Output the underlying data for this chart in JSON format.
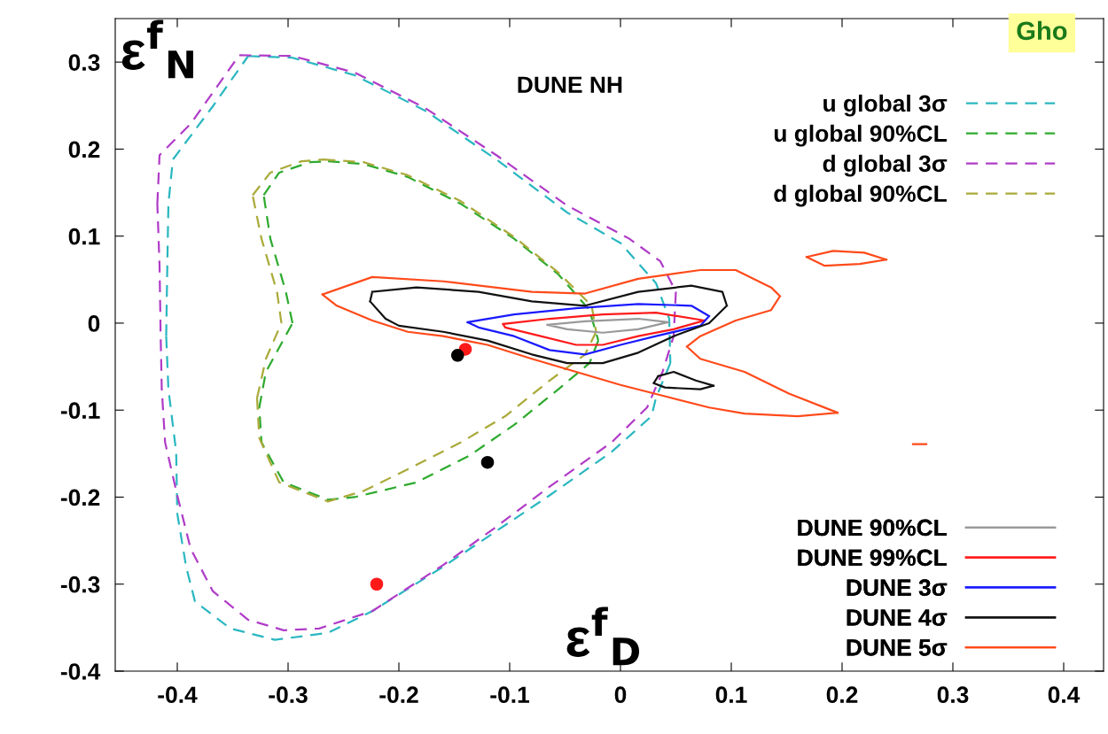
{
  "chart_data": {
    "type": "line",
    "title": "DUNE NH",
    "xlabel": "ε$^{f}$$_{D}$",
    "ylabel": "ε$^{f}$$_{N}$",
    "annotations": [
      "Gho"
    ],
    "xlim": [
      -0.456,
      0.436
    ],
    "ylim": [
      -0.4,
      0.35
    ],
    "xticks": [
      -0.4,
      -0.3,
      -0.2,
      -0.1,
      0,
      0.1,
      0.2,
      0.3,
      0.4
    ],
    "yticks": [
      -0.4,
      -0.3,
      -0.2,
      -0.1,
      0,
      0.1,
      0.2,
      0.3
    ],
    "legend": "right",
    "grid": false,
    "series": [
      {
        "name": "u global 3σ",
        "color": "#2ab7c0",
        "line_style": "dashed",
        "x": [
          -0.336,
          -0.296,
          -0.24,
          -0.176,
          -0.112,
          -0.048,
          0,
          0.032,
          0.044,
          0.045,
          null,
          0.045,
          0.032,
          0.028,
          -0.008,
          -0.064,
          -0.112,
          -0.16,
          -0.224,
          -0.264,
          -0.312,
          -0.352,
          -0.384,
          -0.392,
          -0.4,
          -0.401,
          -0.408,
          -0.41,
          null,
          -0.41,
          -0.409,
          -0.408,
          -0.404,
          -0.368,
          -0.336
        ],
        "values": [
          0.307,
          0.305,
          0.285,
          0.244,
          0.188,
          0.127,
          0.092,
          0.046,
          0.005,
          -0.046,
          null,
          -0.046,
          -0.086,
          -0.107,
          -0.148,
          -0.198,
          -0.239,
          -0.28,
          -0.331,
          -0.356,
          -0.364,
          -0.351,
          -0.32,
          -0.28,
          -0.219,
          -0.148,
          -0.076,
          -0.015,
          null,
          -0.015,
          0.066,
          0.137,
          0.188,
          0.249,
          0.307
        ]
      },
      {
        "name": "u global 90%CL",
        "color": "#2eaa2e",
        "line_style": "dashed",
        "x": [
          -0.264,
          -0.232,
          -0.192,
          -0.144,
          -0.096,
          -0.056,
          -0.028,
          -0.02,
          null,
          -0.02,
          -0.028,
          -0.056,
          -0.096,
          -0.136,
          -0.184,
          -0.24,
          -0.264,
          -0.304,
          -0.324,
          -0.326,
          null,
          -0.326,
          -0.32,
          -0.296,
          null,
          -0.296,
          -0.302,
          -0.316,
          -0.322,
          null,
          -0.322,
          -0.308,
          -0.28,
          -0.264
        ],
        "values": [
          0.186,
          0.183,
          0.168,
          0.137,
          0.097,
          0.056,
          0.015,
          -0.02,
          null,
          -0.02,
          -0.046,
          -0.076,
          -0.117,
          -0.152,
          -0.183,
          -0.2,
          -0.203,
          -0.183,
          -0.137,
          -0.097,
          null,
          -0.097,
          -0.056,
          0,
          null,
          0,
          0.036,
          0.097,
          0.147,
          null,
          0.147,
          0.173,
          0.185,
          0.186
        ]
      },
      {
        "name": "d global 3σ",
        "color": "#b03cc8",
        "line_style": "dashed",
        "x": [
          -0.344,
          -0.296,
          -0.24,
          -0.176,
          -0.112,
          -0.048,
          0.008,
          0.036,
          0.05,
          null,
          0.05,
          0.048,
          0.038,
          0.024,
          -0.008,
          -0.064,
          -0.112,
          -0.16,
          -0.224,
          -0.272,
          -0.304,
          -0.336,
          -0.368,
          -0.388,
          -0.4,
          -0.411,
          -0.414,
          -0.415,
          -0.416,
          -0.418,
          null,
          -0.418,
          -0.416,
          -0.388,
          -0.344
        ],
        "values": [
          0.308,
          0.307,
          0.288,
          0.247,
          0.193,
          0.135,
          0.097,
          0.071,
          0.036,
          null,
          0.036,
          -0.015,
          -0.056,
          -0.097,
          -0.137,
          -0.188,
          -0.234,
          -0.278,
          -0.331,
          -0.351,
          -0.353,
          -0.341,
          -0.308,
          -0.259,
          -0.198,
          -0.137,
          -0.076,
          -0.015,
          0.066,
          0.137,
          null,
          0.137,
          0.193,
          0.229,
          0.308
        ]
      },
      {
        "name": "d global 90%CL",
        "color": "#aaaa3a",
        "line_style": "dashed",
        "x": [
          -0.268,
          -0.232,
          -0.192,
          -0.144,
          -0.096,
          -0.056,
          -0.026,
          -0.022,
          null,
          -0.022,
          -0.032,
          -0.064,
          -0.104,
          -0.144,
          -0.192,
          -0.232,
          -0.264,
          -0.308,
          -0.326,
          -0.328,
          null,
          -0.328,
          -0.32,
          -0.306,
          null,
          -0.306,
          -0.31,
          -0.324,
          -0.332,
          null,
          -0.332,
          -0.316,
          -0.288,
          -0.268
        ],
        "values": [
          0.188,
          0.185,
          0.17,
          0.14,
          0.099,
          0.058,
          0.02,
          -0.01,
          null,
          -0.01,
          -0.036,
          -0.066,
          -0.107,
          -0.137,
          -0.168,
          -0.193,
          -0.205,
          -0.183,
          -0.132,
          -0.086,
          null,
          -0.086,
          -0.041,
          0,
          null,
          0,
          0.036,
          0.097,
          0.147,
          null,
          0.147,
          0.173,
          0.186,
          0.188
        ]
      },
      {
        "name": "DUNE 90%CL",
        "color": "#999999",
        "line_style": "solid",
        "x": [
          -0.066,
          -0.032,
          0.016,
          0.043,
          null,
          0.043,
          0.016,
          -0.016,
          -0.048,
          -0.066
        ],
        "values": [
          -0.002,
          0.002,
          0.005,
          0.001,
          null,
          0.001,
          -0.007,
          -0.011,
          -0.007,
          -0.002
        ]
      },
      {
        "name": "DUNE 99%CL",
        "color": "#ff1a1a",
        "line_style": "solid",
        "x": [
          -0.106,
          -0.064,
          -0.016,
          0.032,
          0.076,
          null,
          0.076,
          0.048,
          0.016,
          -0.016,
          -0.04,
          -0.072,
          -0.104,
          -0.106
        ],
        "values": [
          -0.001,
          0.005,
          0.01,
          0.012,
          0.003,
          null,
          0.003,
          -0.007,
          -0.015,
          -0.025,
          -0.025,
          -0.015,
          -0.005,
          -0.001
        ]
      },
      {
        "name": "DUNE 3σ",
        "color": "#1a1aff",
        "line_style": "solid",
        "x": [
          -0.138,
          -0.096,
          -0.04,
          0.016,
          0.064,
          0.08,
          null,
          0.08,
          0.072,
          0.032,
          0,
          -0.032,
          -0.064,
          -0.096,
          -0.128,
          -0.138
        ],
        "values": [
          0.001,
          0.01,
          0.017,
          0.022,
          0.02,
          0.008,
          null,
          0.008,
          -0.003,
          -0.015,
          -0.025,
          -0.036,
          -0.031,
          -0.015,
          -0.005,
          0.001
        ]
      },
      {
        "name": "DUNE 4σ",
        "color": "#111111",
        "line_style": "solid",
        "x": [
          -0.224,
          -0.184,
          -0.128,
          -0.08,
          -0.032,
          0.016,
          0.064,
          0.092,
          0.096,
          null,
          0.096,
          0.08,
          0.048,
          0.016,
          -0.016,
          -0.048,
          -0.08,
          -0.12,
          -0.16,
          -0.2,
          -0.212,
          -0.226,
          null,
          -0.226,
          -0.224,
          null,
          0.034,
          0.048,
          0.068,
          0.084,
          null,
          0.084,
          0.072,
          0.04,
          0.03,
          null,
          0.03,
          0.034
        ],
        "values": [
          0.036,
          0.041,
          0.036,
          0.025,
          0.02,
          0.036,
          0.043,
          0.036,
          0.02,
          null,
          0.02,
          0,
          -0.015,
          -0.034,
          -0.046,
          -0.046,
          -0.036,
          -0.02,
          -0.01,
          -0.003,
          0.005,
          0.025,
          null,
          0.025,
          0.036,
          null,
          -0.061,
          -0.056,
          -0.066,
          -0.072,
          null,
          -0.072,
          -0.076,
          -0.074,
          -0.069,
          null,
          -0.069,
          -0.061
        ]
      },
      {
        "name": "DUNE 5σ",
        "color": "#ff4a1a",
        "line_style": "solid",
        "x": [
          -0.269,
          -0.224,
          -0.16,
          -0.08,
          -0.032,
          0.016,
          0.072,
          0.104,
          0.136,
          0.144,
          null,
          0.144,
          0.136,
          0.104,
          0.072,
          0.06,
          null,
          0.06,
          0.072,
          0.112,
          0.152,
          0.196,
          null,
          0.196,
          0.16,
          0.112,
          0.08,
          0.04,
          0,
          -0.04,
          -0.08,
          -0.12,
          -0.16,
          -0.192,
          -0.224,
          -0.256,
          -0.269,
          null,
          0.168,
          0.192,
          0.22,
          0.24,
          null,
          0.24,
          0.216,
          0.184,
          0.168,
          null,
          0.264,
          0.276
        ],
        "values": [
          0.033,
          0.053,
          0.048,
          0.036,
          0.034,
          0.051,
          0.061,
          0.061,
          0.041,
          0.031,
          null,
          0.031,
          0.015,
          0.003,
          -0.015,
          -0.027,
          null,
          -0.027,
          -0.041,
          -0.056,
          -0.081,
          -0.103,
          null,
          -0.103,
          -0.107,
          -0.104,
          -0.097,
          -0.084,
          -0.071,
          -0.056,
          -0.041,
          -0.025,
          -0.015,
          -0.01,
          0.003,
          0.02,
          0.033,
          null,
          0.076,
          0.083,
          0.081,
          0.073,
          null,
          0.073,
          0.068,
          0.066,
          0.076,
          null,
          -0.139,
          -0.139
        ]
      },
      {
        "type": "scatter",
        "colors": [
          "#ff1a1a",
          "#000000",
          "#000000",
          "#ff1a1a"
        ],
        "x": [
          -0.14,
          -0.147,
          -0.12,
          -0.22
        ],
        "values": [
          -0.03,
          -0.037,
          -0.16,
          -0.3
        ]
      }
    ]
  }
}
